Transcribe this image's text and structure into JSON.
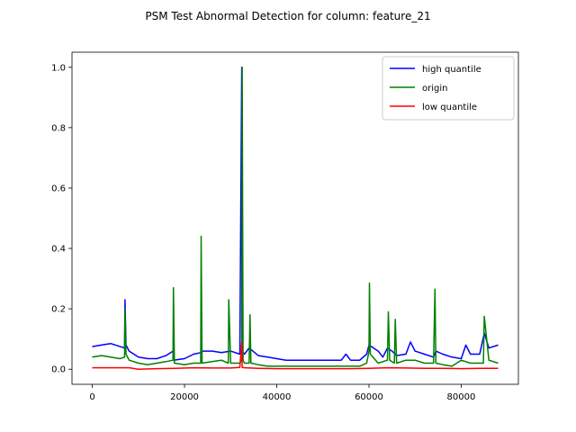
{
  "chart_data": {
    "type": "line",
    "title": "PSM Test Abnormal Detection for column: feature_21",
    "xlabel": "",
    "ylabel": "",
    "xlim": [
      -4400,
      92400
    ],
    "ylim": [
      -0.05,
      1.05
    ],
    "x_ticks": [
      0,
      20000,
      40000,
      60000,
      80000
    ],
    "y_ticks": [
      0.0,
      0.2,
      0.4,
      0.6,
      0.8,
      1.0
    ],
    "x_tick_labels": [
      "0",
      "20000",
      "40000",
      "60000",
      "80000"
    ],
    "y_tick_labels": [
      "0.0",
      "0.2",
      "0.4",
      "0.6",
      "0.8",
      "1.0"
    ],
    "grid": false,
    "legend_position": "top-right",
    "series": [
      {
        "name": "high quantile",
        "color": "#0000ff",
        "x": [
          0,
          2000,
          4000,
          6000,
          7000,
          7100,
          7300,
          8000,
          10000,
          12000,
          14000,
          16000,
          17500,
          17600,
          20000,
          22000,
          23500,
          24000,
          26000,
          28000,
          30000,
          32000,
          32400,
          32500,
          33000,
          34000,
          36000,
          38000,
          40000,
          42000,
          44000,
          46000,
          48000,
          50000,
          52000,
          54000,
          55000,
          56000,
          58000,
          59500,
          60000,
          61000,
          62000,
          63000,
          64000,
          65000,
          66000,
          68000,
          69000,
          70000,
          72000,
          74000,
          74500,
          76000,
          78000,
          80000,
          81000,
          82000,
          84000,
          85000,
          86000,
          88000
        ],
        "values": [
          0.075,
          0.08,
          0.085,
          0.075,
          0.07,
          0.23,
          0.08,
          0.06,
          0.04,
          0.035,
          0.035,
          0.045,
          0.06,
          0.03,
          0.035,
          0.05,
          0.055,
          0.06,
          0.06,
          0.055,
          0.06,
          0.05,
          1.0,
          0.06,
          0.05,
          0.07,
          0.045,
          0.04,
          0.035,
          0.03,
          0.03,
          0.03,
          0.03,
          0.03,
          0.03,
          0.03,
          0.05,
          0.03,
          0.03,
          0.05,
          0.08,
          0.07,
          0.06,
          0.04,
          0.07,
          0.06,
          0.045,
          0.05,
          0.09,
          0.06,
          0.05,
          0.04,
          0.06,
          0.05,
          0.04,
          0.035,
          0.08,
          0.05,
          0.05,
          0.12,
          0.07,
          0.08
        ]
      },
      {
        "name": "origin",
        "color": "#008000",
        "x": [
          0,
          2000,
          4000,
          6000,
          7000,
          7100,
          7300,
          8000,
          10000,
          12000,
          14000,
          16000,
          17500,
          17600,
          17800,
          20000,
          22000,
          23500,
          23600,
          23800,
          26000,
          28000,
          29500,
          29600,
          30000,
          32000,
          32400,
          32500,
          32700,
          33000,
          34000,
          34200,
          34400,
          36000,
          38000,
          40000,
          42000,
          44000,
          46000,
          48000,
          50000,
          52000,
          54000,
          56000,
          58000,
          59500,
          60000,
          60100,
          60300,
          62000,
          64000,
          64200,
          64500,
          65500,
          65700,
          66000,
          68000,
          70000,
          72000,
          74000,
          74300,
          74500,
          76000,
          78000,
          80000,
          82000,
          84000,
          84800,
          85000,
          86000,
          88000
        ],
        "values": [
          0.04,
          0.045,
          0.04,
          0.035,
          0.04,
          0.2,
          0.05,
          0.03,
          0.02,
          0.015,
          0.02,
          0.025,
          0.03,
          0.27,
          0.02,
          0.015,
          0.02,
          0.02,
          0.44,
          0.02,
          0.025,
          0.03,
          0.02,
          0.23,
          0.02,
          0.02,
          0.03,
          1.0,
          0.03,
          0.02,
          0.02,
          0.18,
          0.02,
          0.015,
          0.01,
          0.01,
          0.01,
          0.01,
          0.01,
          0.01,
          0.01,
          0.01,
          0.01,
          0.01,
          0.01,
          0.02,
          0.06,
          0.285,
          0.05,
          0.02,
          0.03,
          0.19,
          0.03,
          0.02,
          0.165,
          0.02,
          0.03,
          0.03,
          0.02,
          0.02,
          0.265,
          0.02,
          0.015,
          0.01,
          0.03,
          0.02,
          0.02,
          0.02,
          0.175,
          0.03,
          0.02
        ]
      },
      {
        "name": "low quantile",
        "color": "#ff0000",
        "x": [
          0,
          4000,
          8000,
          10000,
          14000,
          18000,
          22000,
          26000,
          30000,
          32000,
          32400,
          32500,
          33000,
          36000,
          40000,
          44000,
          48000,
          52000,
          56000,
          60000,
          64000,
          68000,
          72000,
          76000,
          80000,
          84000,
          88000
        ],
        "values": [
          0.005,
          0.005,
          0.005,
          0.0,
          0.002,
          0.003,
          0.005,
          0.004,
          0.004,
          0.006,
          0.09,
          0.006,
          0.005,
          0.003,
          0.002,
          0.002,
          0.002,
          0.002,
          0.002,
          0.003,
          0.005,
          0.004,
          0.003,
          0.003,
          0.002,
          0.003,
          0.003
        ]
      }
    ]
  }
}
